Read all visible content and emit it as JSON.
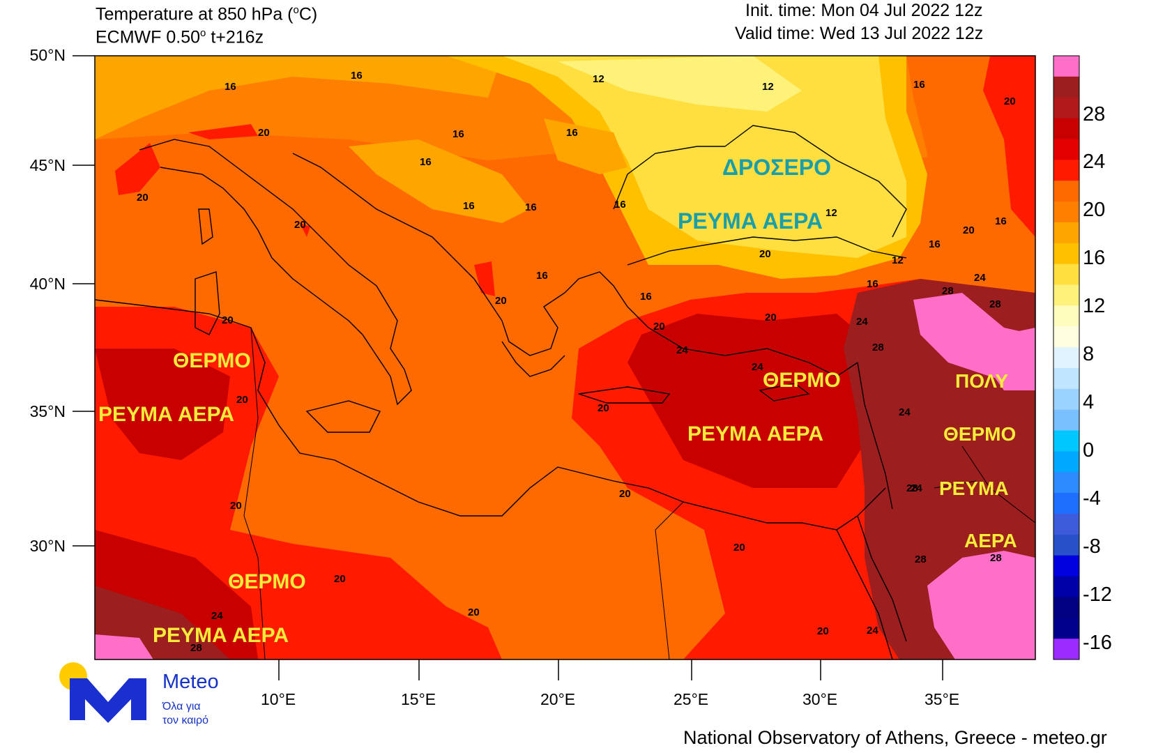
{
  "header": {
    "title_line1_pre": "Temperature at 850 hPa (",
    "title_unit_sup": "o",
    "title_line1_post": "C)",
    "title_line2_pre": "ECMWF 0.50",
    "title_line2_sup": "o",
    "title_line2_post": " t+216z",
    "init_time": "Init. time: Mon 04 Jul 2022 12z",
    "valid_time": "Valid time: Wed 13 Jul 2022 12z"
  },
  "axes": {
    "lat_labels": [
      "50°N",
      "45°N",
      "40°N",
      "35°N",
      "30°N"
    ],
    "lon_labels": [
      "10°E",
      "15°E",
      "20°E",
      "25°E",
      "30°E",
      "35°E"
    ]
  },
  "colorbar": {
    "labels": [
      "28",
      "24",
      "20",
      "16",
      "12",
      "8",
      "4",
      "0",
      "-4",
      "-8",
      "-12",
      "-16"
    ],
    "colors": [
      "#ff6ec7",
      "#9c1e1e",
      "#b01a1a",
      "#c80000",
      "#e40000",
      "#ff1a00",
      "#ff6a00",
      "#ff8000",
      "#ffa500",
      "#ffc000",
      "#ffde40",
      "#fff27a",
      "#fffcc0",
      "#fffde0",
      "#e0f4ff",
      "#c0e6ff",
      "#9cd2ff",
      "#78c0ff",
      "#00c8ff",
      "#00a8ff",
      "#2c8cff",
      "#1e6eff",
      "#3c5cdc",
      "#2850c8",
      "#0000e0",
      "#0000a8",
      "#000080",
      "#00008c",
      "#9a2cff"
    ]
  },
  "annotations": {
    "cool_current": "ΔΡΟΣΕΡΟ",
    "current_word": "ΡΕΥΜΑ ΑΕΡΑ",
    "warm": "ΘΕΡΜΟ",
    "very": "ΠΟΛΥ",
    "current_only": "ΡΕΥΜΑ",
    "air_only": "ΑΕΡΑ"
  },
  "contour_labels": [
    "16",
    "16",
    "20",
    "12",
    "12",
    "16",
    "16",
    "20",
    "16",
    "16",
    "16",
    "16",
    "16",
    "20",
    "12",
    "20",
    "16",
    "16",
    "12",
    "20",
    "20",
    "16",
    "16",
    "20",
    "16",
    "20",
    "20",
    "24",
    "24",
    "28",
    "24",
    "28",
    "20",
    "24",
    "28",
    "20",
    "20",
    "20",
    "24",
    "28",
    "20",
    "20",
    "24",
    "28",
    "20",
    "20",
    "24",
    "20",
    "28",
    "24",
    "28"
  ],
  "logo": {
    "brand": "Meteo",
    "slogan_line1": "Όλα για",
    "slogan_line2": "τον καιρό"
  },
  "footer": "National Observatory of Athens, Greece - meteo.gr"
}
